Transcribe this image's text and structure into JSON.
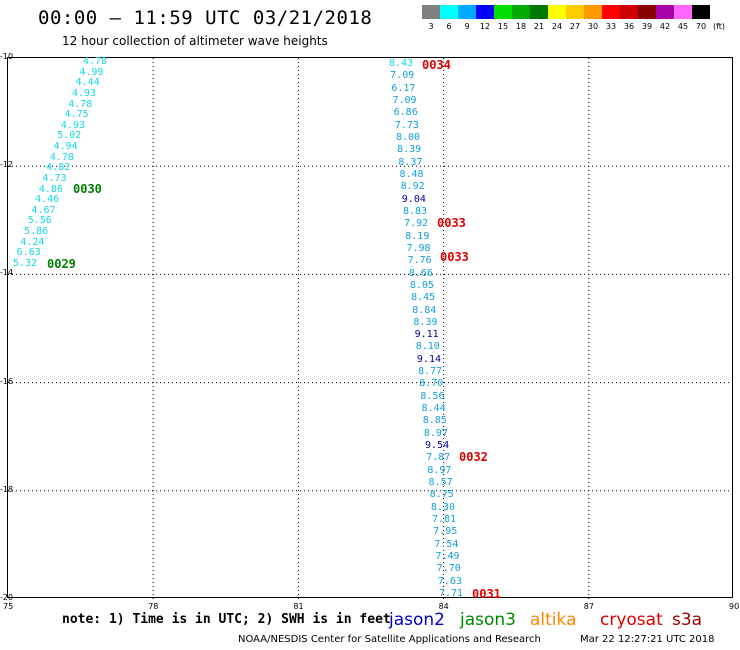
{
  "header": {
    "title": "00:00 – 11:59 UTC 03/21/2018",
    "subtitle": "12 hour collection of altimeter wave heights"
  },
  "legend": {
    "unit": "(ft)",
    "bins": [
      {
        "label": "3",
        "color": "#808080"
      },
      {
        "label": "6",
        "color": "#00ffff"
      },
      {
        "label": "9",
        "color": "#00aaff"
      },
      {
        "label": "12",
        "color": "#0000ff"
      },
      {
        "label": "15",
        "color": "#00dd00"
      },
      {
        "label": "18",
        "color": "#00aa00"
      },
      {
        "label": "21",
        "color": "#007700"
      },
      {
        "label": "24",
        "color": "#ffff00"
      },
      {
        "label": "27",
        "color": "#ffcc00"
      },
      {
        "label": "30",
        "color": "#ff9900"
      },
      {
        "label": "33",
        "color": "#ff0000"
      },
      {
        "label": "36",
        "color": "#cc0000"
      },
      {
        "label": "39",
        "color": "#880000"
      },
      {
        "label": "42",
        "color": "#aa00aa"
      },
      {
        "label": "45",
        "color": "#ff66ff"
      },
      {
        "label": "70",
        "color": "#000000"
      }
    ]
  },
  "axes": {
    "lat_ticks": [
      "-10",
      "-12",
      "-14",
      "-16",
      "-18",
      "-20"
    ],
    "lon_ticks": [
      "75",
      "78",
      "81",
      "84",
      "87",
      "90"
    ]
  },
  "colors": {
    "cyan_swh": "#11d8e6",
    "blue_swh": "#119fe0",
    "darkblue_swh": "#000099",
    "green_pass": "#008000",
    "red_pass": "#e00000"
  },
  "track_west": [
    "4.78",
    "4.99",
    "4.44",
    "4.93",
    "4.78",
    "4.75",
    "4.93",
    "5.02",
    "4.94",
    "4.78",
    "4.82",
    "4.73",
    "4.86",
    "4.46",
    "4.67",
    "5.56",
    "5.86",
    "4.24",
    "6.63",
    "5.32"
  ],
  "track_east": [
    "8.43",
    "7.09",
    "6.17",
    "7.09",
    "6.86",
    "7.73",
    "8.00",
    "8.39",
    "8.37",
    "8.48",
    "8.92",
    "9.04",
    "8.83",
    "7.92",
    "8.19",
    "7.98",
    "7.76",
    "8.66",
    "8.05",
    "8.45",
    "8.84",
    "8.39",
    "9.11",
    "8.10",
    "9.14",
    "8.77",
    "8.70",
    "8.56",
    "8.44",
    "8.85",
    "8.97",
    "9.54",
    "7.87",
    "8.97",
    "8.57",
    "8.75",
    "8.30",
    "7.81",
    "7.95",
    "7.54",
    "7.49",
    "7.70",
    "7.63",
    "7.71"
  ],
  "east_color_class": [
    "c",
    "b",
    "b",
    "b",
    "b",
    "b",
    "b",
    "b",
    "b",
    "b",
    "b",
    "d",
    "b",
    "b",
    "b",
    "b",
    "b",
    "b",
    "b",
    "b",
    "b",
    "b",
    "d",
    "b",
    "d",
    "b",
    "b",
    "b",
    "b",
    "b",
    "b",
    "d",
    "b",
    "b",
    "b",
    "b",
    "b",
    "b",
    "b",
    "b",
    "b",
    "b",
    "b",
    "b"
  ],
  "pass_labels": {
    "p0030": "0030",
    "p0029": "0029",
    "p0034": "0034",
    "p0033a": "0033",
    "p0033b": "0033",
    "p0032": "0032",
    "p0031": "0031"
  },
  "footer": {
    "note": "note: 1) Time is in UTC; 2) SWH is in feet",
    "satellites": [
      {
        "name": "jason2",
        "color": "#0000cc"
      },
      {
        "name": "jason3",
        "color": "#008800"
      },
      {
        "name": "altika",
        "color": "#ff8800"
      },
      {
        "name": "cryosat",
        "color": "#dd0000"
      },
      {
        "name": "s3a",
        "color": "#990000"
      }
    ],
    "credit": "NOAA/NESDIS Center for Satellite Applications and Research",
    "timestamp": "Mar 22 12:27:21 UTC 2018"
  }
}
